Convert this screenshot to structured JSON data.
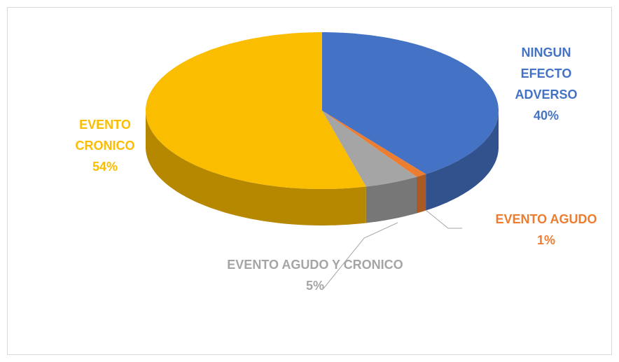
{
  "chart_data": {
    "type": "pie3d",
    "categories": [
      "NINGUN EFECTO ADVERSO",
      "EVENTO AGUDO",
      "EVENTO AGUDO Y CRONICO",
      "EVENTO CRONICO"
    ],
    "values": [
      40,
      1,
      5,
      54
    ],
    "value_labels": [
      "40%",
      "1%",
      "5%",
      "54%"
    ],
    "colors": [
      "#4472c4",
      "#ed7d31",
      "#a5a5a5",
      "#fbbd00"
    ]
  }
}
